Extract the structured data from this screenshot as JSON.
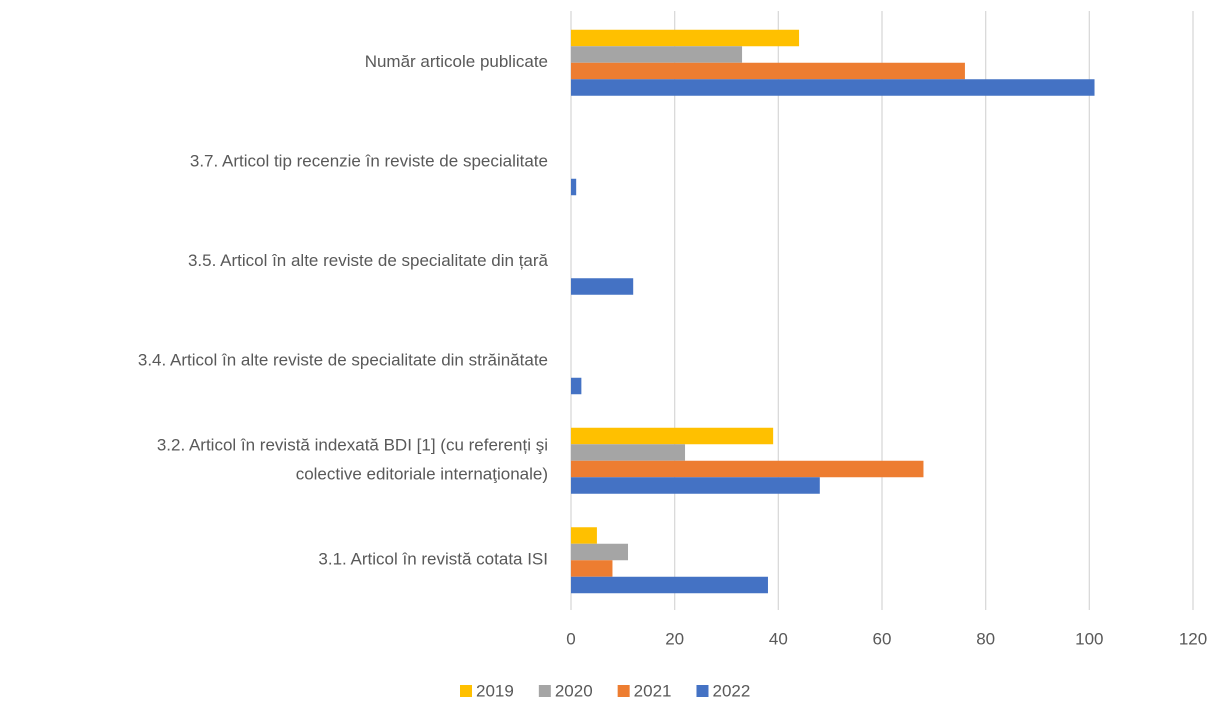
{
  "chart_data": {
    "type": "bar",
    "orientation": "horizontal",
    "categories": [
      "Număr articole publicate",
      "3.7. Articol tip recenzie în reviste de specialitate",
      "3.5. Articol în alte reviste de specialitate din țară",
      "3.4. Articol în alte reviste de specialitate din străinătate",
      "3.2. Articol în revistă indexată BDI [1] (cu referenți şi\ncolective editoriale internaţionale)",
      "3.1. Articol în revistă cotata ISI"
    ],
    "series": [
      {
        "name": "2019",
        "color": "#FFC000",
        "values": [
          44,
          0,
          0,
          0,
          39,
          5
        ]
      },
      {
        "name": "2020",
        "color": "#A5A5A5",
        "values": [
          33,
          0,
          0,
          0,
          22,
          11
        ]
      },
      {
        "name": "2021",
        "color": "#ED7D31",
        "values": [
          76,
          0,
          0,
          0,
          68,
          8
        ]
      },
      {
        "name": "2022",
        "color": "#4472C4",
        "values": [
          101,
          1,
          12,
          2,
          48,
          38
        ]
      }
    ],
    "xlim": [
      0,
      120
    ],
    "xticks": [
      0,
      20,
      40,
      60,
      80,
      100,
      120
    ],
    "grid": true,
    "legend": "bottom"
  }
}
